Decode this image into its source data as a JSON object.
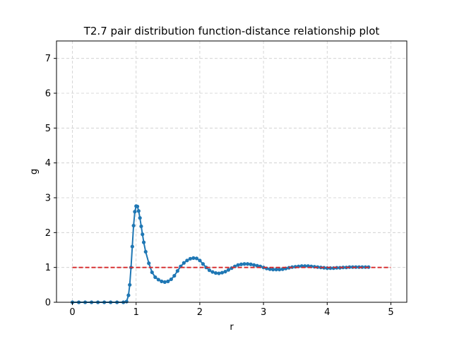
{
  "chart_data": {
    "type": "scatter",
    "title": "T2.7 pair distribution function-distance relationship plot",
    "xlabel": "r",
    "ylabel": "g",
    "xlim": [
      -0.25,
      5.25
    ],
    "ylim": [
      0,
      7.5
    ],
    "xticks": [
      0,
      1,
      2,
      3,
      4,
      5
    ],
    "yticks": [
      0,
      1,
      2,
      3,
      4,
      5,
      6,
      7
    ],
    "grid": true,
    "series": [
      {
        "style": "line-with-markers",
        "color": "#1f77b4",
        "x": [
          0.0,
          0.1,
          0.2,
          0.3,
          0.4,
          0.5,
          0.6,
          0.7,
          0.8,
          0.85,
          0.88,
          0.9,
          0.92,
          0.94,
          0.96,
          0.98,
          1.0,
          1.02,
          1.04,
          1.06,
          1.08,
          1.1,
          1.12,
          1.15,
          1.2,
          1.25,
          1.3,
          1.35,
          1.4,
          1.45,
          1.5,
          1.55,
          1.6,
          1.65,
          1.7,
          1.75,
          1.8,
          1.85,
          1.9,
          1.95,
          2.0,
          2.05,
          2.1,
          2.15,
          2.2,
          2.25,
          2.3,
          2.35,
          2.4,
          2.45,
          2.5,
          2.55,
          2.6,
          2.65,
          2.7,
          2.75,
          2.8,
          2.85,
          2.9,
          2.95,
          3.0,
          3.05,
          3.1,
          3.15,
          3.2,
          3.25,
          3.3,
          3.35,
          3.4,
          3.45,
          3.5,
          3.55,
          3.6,
          3.65,
          3.7,
          3.75,
          3.8,
          3.85,
          3.9,
          3.95,
          4.0,
          4.05,
          4.1,
          4.15,
          4.2,
          4.25,
          4.3,
          4.35,
          4.4,
          4.45,
          4.5,
          4.55,
          4.6,
          4.65
        ],
        "y": [
          0.0,
          0.0,
          0.0,
          0.0,
          0.0,
          0.0,
          0.0,
          0.0,
          0.0,
          0.02,
          0.2,
          0.5,
          1.0,
          1.6,
          2.2,
          2.6,
          2.76,
          2.75,
          2.62,
          2.42,
          2.18,
          1.95,
          1.72,
          1.45,
          1.12,
          0.86,
          0.72,
          0.65,
          0.6,
          0.58,
          0.6,
          0.66,
          0.76,
          0.9,
          1.03,
          1.13,
          1.2,
          1.25,
          1.27,
          1.26,
          1.2,
          1.1,
          1.0,
          0.92,
          0.87,
          0.84,
          0.83,
          0.85,
          0.88,
          0.93,
          0.98,
          1.03,
          1.07,
          1.09,
          1.1,
          1.1,
          1.09,
          1.07,
          1.05,
          1.03,
          1.0,
          0.97,
          0.95,
          0.94,
          0.94,
          0.94,
          0.95,
          0.97,
          0.99,
          1.01,
          1.02,
          1.03,
          1.04,
          1.04,
          1.04,
          1.03,
          1.02,
          1.01,
          1.0,
          0.99,
          0.98,
          0.98,
          0.98,
          0.99,
          0.99,
          1.0,
          1.0,
          1.01,
          1.01,
          1.01,
          1.01,
          1.01,
          1.01,
          1.01
        ]
      },
      {
        "style": "dashed-line",
        "color": "#d62728",
        "x": [
          0,
          5
        ],
        "y": [
          1,
          1
        ]
      }
    ]
  }
}
